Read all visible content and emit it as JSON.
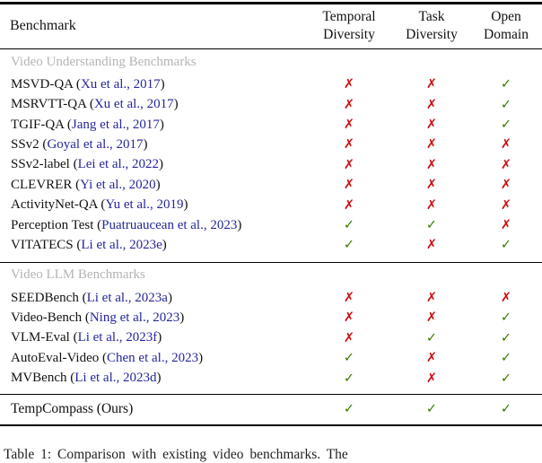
{
  "colors": {
    "check": "#3d7a00",
    "cross": "#cc1111",
    "citation": "#26269b",
    "section_label": "#b4b4b4",
    "rule": "#000000"
  },
  "icons": {
    "check": "✓",
    "cross": "✗"
  },
  "table": {
    "header": {
      "benchmark": "Benchmark",
      "columns": [
        {
          "line1": "Temporal",
          "line2": "Diversity"
        },
        {
          "line1": "Task",
          "line2": "Diversity"
        },
        {
          "line1": "Open",
          "line2": "Domain"
        }
      ]
    },
    "sections": [
      {
        "label": "Video Understanding Benchmarks",
        "rows": [
          {
            "name": "MSVD-QA",
            "cite": "Xu et al., 2017",
            "marks": [
              "cross",
              "cross",
              "check"
            ]
          },
          {
            "name": "MSRVTT-QA",
            "cite": "Xu et al., 2017",
            "marks": [
              "cross",
              "cross",
              "check"
            ]
          },
          {
            "name": "TGIF-QA",
            "cite": "Jang et al., 2017",
            "marks": [
              "cross",
              "cross",
              "check"
            ]
          },
          {
            "name": "SSv2",
            "cite": "Goyal et al., 2017",
            "marks": [
              "cross",
              "cross",
              "cross"
            ]
          },
          {
            "name": "SSv2-label",
            "cite": "Lei et al., 2022",
            "marks": [
              "cross",
              "cross",
              "cross"
            ]
          },
          {
            "name": "CLEVRER",
            "cite": "Yi et al., 2020",
            "marks": [
              "cross",
              "cross",
              "cross"
            ]
          },
          {
            "name": "ActivityNet-QA",
            "cite": "Yu et al., 2019",
            "marks": [
              "cross",
              "cross",
              "cross"
            ]
          },
          {
            "name": "Perception Test",
            "cite": "Puatruaucean et al., 2023",
            "marks": [
              "check",
              "check",
              "cross"
            ]
          },
          {
            "name": "VITATECS",
            "cite": "Li et al., 2023e",
            "marks": [
              "check",
              "cross",
              "check"
            ]
          }
        ]
      },
      {
        "label": "Video LLM Benchmarks",
        "rows": [
          {
            "name": "SEEDBench",
            "cite": "Li et al., 2023a",
            "marks": [
              "cross",
              "cross",
              "cross"
            ]
          },
          {
            "name": "Video-Bench",
            "cite": "Ning et al., 2023",
            "marks": [
              "cross",
              "cross",
              "check"
            ]
          },
          {
            "name": "VLM-Eval",
            "cite": "Li et al., 2023f",
            "marks": [
              "cross",
              "check",
              "check"
            ]
          },
          {
            "name": "AutoEval-Video",
            "cite": "Chen et al., 2023",
            "marks": [
              "check",
              "cross",
              "check"
            ]
          },
          {
            "name": "MVBench",
            "cite": "Li et al., 2023d",
            "marks": [
              "check",
              "cross",
              "check"
            ]
          }
        ]
      }
    ],
    "final_row": {
      "name": "TempCompass (Ours)",
      "cite": null,
      "marks": [
        "check",
        "check",
        "check"
      ]
    }
  },
  "caption": "Table 1: Comparison with existing video benchmarks. The"
}
